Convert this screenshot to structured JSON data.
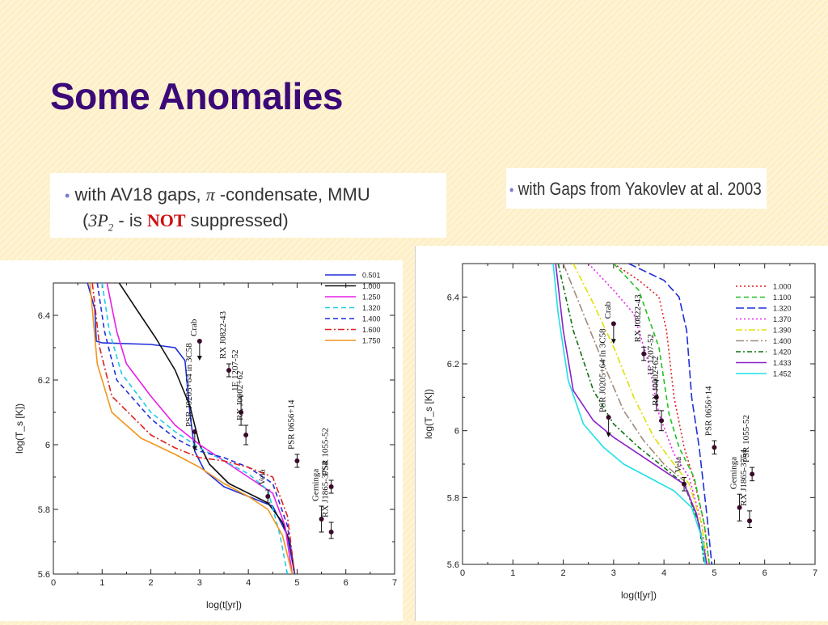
{
  "slide": {
    "title": "Some Anomalies",
    "caption_left": {
      "bullet": "•",
      "line1_a": "with AV18 gaps,",
      "line1_pi": "π",
      "line1_b": "-condensate, MMU",
      "line2_open": "(",
      "line2_math": "3P",
      "line2_sub": "2",
      "line2_mid": " - is ",
      "line2_not": "NOT",
      "line2_end": " suppressed)"
    },
    "caption_right": {
      "bullet": "•",
      "text": "with Gaps from Yakovlev at al. 2003"
    }
  },
  "chart_data": [
    {
      "type": "line",
      "xlabel": "log(t[yr])",
      "ylabel": "log(T_s [K])",
      "xlim": [
        0,
        7
      ],
      "ylim": [
        5.6,
        6.5
      ],
      "xticks": [
        "0",
        "1",
        "2",
        "3",
        "4",
        "5",
        "6",
        "7"
      ],
      "yticks": [
        "5.6",
        "5.8",
        "6",
        "6.2",
        "6.4"
      ],
      "legend_position": "top-right",
      "series": [
        {
          "name": "0.501",
          "color": "#1f2fd8",
          "dash": "",
          "points": [
            [
              0.7,
              6.5
            ],
            [
              0.85,
              6.42
            ],
            [
              0.88,
              6.32
            ],
            [
              1.0,
              6.315
            ],
            [
              2.0,
              6.31
            ],
            [
              2.5,
              6.3
            ],
            [
              2.7,
              6.26
            ],
            [
              2.8,
              6.1
            ],
            [
              2.9,
              5.98
            ],
            [
              3.1,
              5.92
            ],
            [
              3.5,
              5.87
            ],
            [
              4.0,
              5.84
            ],
            [
              4.5,
              5.81
            ],
            [
              4.8,
              5.72
            ],
            [
              4.95,
              5.6
            ]
          ]
        },
        {
          "name": "1.000",
          "color": "#111111",
          "dash": "",
          "points": [
            [
              1.35,
              6.5
            ],
            [
              1.7,
              6.42
            ],
            [
              2.1,
              6.33
            ],
            [
              2.5,
              6.23
            ],
            [
              2.8,
              6.12
            ],
            [
              3.0,
              6.0
            ],
            [
              3.2,
              5.94
            ],
            [
              3.6,
              5.88
            ],
            [
              4.0,
              5.85
            ],
            [
              4.4,
              5.82
            ],
            [
              4.7,
              5.76
            ],
            [
              4.85,
              5.7
            ],
            [
              4.95,
              5.6
            ]
          ]
        },
        {
          "name": "1.250",
          "color": "#e81ee8",
          "dash": "",
          "points": [
            [
              1.1,
              6.5
            ],
            [
              1.3,
              6.35
            ],
            [
              1.5,
              6.25
            ],
            [
              2.0,
              6.15
            ],
            [
              2.5,
              6.06
            ],
            [
              3.0,
              6.0
            ],
            [
              3.5,
              5.95
            ],
            [
              4.0,
              5.9
            ],
            [
              4.5,
              5.85
            ],
            [
              4.75,
              5.75
            ],
            [
              4.9,
              5.6
            ]
          ]
        },
        {
          "name": "1.320",
          "color": "#1ecbe8",
          "dash": "6,4",
          "points": [
            [
              1.0,
              6.5
            ],
            [
              1.15,
              6.35
            ],
            [
              1.4,
              6.22
            ],
            [
              2.0,
              6.1
            ],
            [
              2.5,
              6.04
            ],
            [
              3.0,
              5.99
            ],
            [
              3.5,
              5.95
            ],
            [
              4.0,
              5.91
            ],
            [
              4.4,
              5.86
            ],
            [
              4.65,
              5.72
            ],
            [
              4.8,
              5.6
            ]
          ]
        },
        {
          "name": "1.400",
          "color": "#1f2fd8",
          "dash": "6,4",
          "points": [
            [
              0.9,
              6.5
            ],
            [
              1.05,
              6.35
            ],
            [
              1.3,
              6.2
            ],
            [
              2.0,
              6.08
            ],
            [
              2.5,
              6.02
            ],
            [
              3.0,
              5.98
            ],
            [
              3.5,
              5.96
            ],
            [
              4.0,
              5.93
            ],
            [
              4.5,
              5.88
            ],
            [
              4.8,
              5.75
            ],
            [
              4.95,
              5.6
            ]
          ]
        },
        {
          "name": "1.600",
          "color": "#e02020",
          "dash": "8,3,2,3",
          "points": [
            [
              0.8,
              6.5
            ],
            [
              0.95,
              6.3
            ],
            [
              1.2,
              6.15
            ],
            [
              2.0,
              6.03
            ],
            [
              2.5,
              5.99
            ],
            [
              3.0,
              5.96
            ],
            [
              3.5,
              5.95
            ],
            [
              4.0,
              5.93
            ],
            [
              4.5,
              5.9
            ],
            [
              4.8,
              5.78
            ],
            [
              4.95,
              5.6
            ]
          ]
        },
        {
          "name": "1.750",
          "color": "#f0961e",
          "dash": "",
          "points": [
            [
              0.75,
              6.5
            ],
            [
              0.9,
              6.25
            ],
            [
              1.2,
              6.1
            ],
            [
              1.8,
              6.02
            ],
            [
              2.5,
              5.97
            ],
            [
              3.0,
              5.93
            ],
            [
              3.5,
              5.88
            ],
            [
              4.0,
              5.84
            ],
            [
              4.4,
              5.8
            ],
            [
              4.7,
              5.72
            ],
            [
              4.9,
              5.6
            ]
          ]
        }
      ],
      "observations": [
        {
          "name": "Crab",
          "x": 3.0,
          "y": 6.32,
          "upper_limit": true,
          "lo": 6.26,
          "hi": 6.32
        },
        {
          "name": "RX J0822-43",
          "x": 3.6,
          "y": 6.23,
          "lo": 6.21,
          "hi": 6.25
        },
        {
          "name": "1E 1207-52",
          "x": 3.85,
          "y": 6.1,
          "lo": 6.06,
          "hi": 6.15
        },
        {
          "name": "RX J0002+62",
          "x": 3.95,
          "y": 6.03,
          "lo": 6.0,
          "hi": 6.06
        },
        {
          "name": "PSR J0205+64 in 3C58",
          "x": 2.9,
          "y": 6.04,
          "upper_limit": true,
          "lo": 5.98,
          "hi": 6.04
        },
        {
          "name": "PSR 0656+14",
          "x": 5.0,
          "y": 5.95,
          "lo": 5.93,
          "hi": 5.97
        },
        {
          "name": "Vela",
          "x": 4.4,
          "y": 5.84,
          "lo": 5.82,
          "hi": 5.86
        },
        {
          "name": "PSR 1055-52",
          "x": 5.7,
          "y": 5.87,
          "lo": 5.85,
          "hi": 5.89
        },
        {
          "name": "Geminga",
          "x": 5.5,
          "y": 5.77,
          "lo": 5.73,
          "hi": 5.81
        },
        {
          "name": "RX J1865-3754",
          "x": 5.7,
          "y": 5.73,
          "lo": 5.71,
          "hi": 5.76
        }
      ]
    },
    {
      "type": "line",
      "xlabel": "log(t[yr])",
      "ylabel": "log(T_s [K])",
      "xlim": [
        0,
        7
      ],
      "ylim": [
        5.6,
        6.5
      ],
      "xticks": [
        "0",
        "1",
        "2",
        "3",
        "4",
        "5",
        "6",
        "7"
      ],
      "yticks": [
        "5.6",
        "5.8",
        "6",
        "6.2",
        "6.4"
      ],
      "legend_position": "top-right",
      "series": [
        {
          "name": "1.000",
          "color": "#e02020",
          "dash": "2,3",
          "points": [
            [
              3.0,
              6.5
            ],
            [
              3.5,
              6.45
            ],
            [
              3.9,
              6.4
            ],
            [
              4.05,
              6.3
            ],
            [
              4.2,
              6.1
            ],
            [
              4.4,
              5.95
            ],
            [
              4.6,
              5.85
            ],
            [
              4.8,
              5.72
            ],
            [
              4.9,
              5.6
            ]
          ]
        },
        {
          "name": "1.100",
          "color": "#20c020",
          "dash": "6,4",
          "points": [
            [
              3.0,
              6.5
            ],
            [
              3.5,
              6.42
            ],
            [
              3.9,
              6.25
            ],
            [
              4.1,
              6.05
            ],
            [
              4.3,
              5.95
            ],
            [
              4.6,
              5.86
            ],
            [
              4.8,
              5.72
            ],
            [
              4.9,
              5.6
            ]
          ]
        },
        {
          "name": "1.320",
          "color": "#1f2fd8",
          "dash": "10,4",
          "points": [
            [
              3.3,
              6.5
            ],
            [
              4.0,
              6.45
            ],
            [
              4.3,
              6.4
            ],
            [
              4.45,
              6.3
            ],
            [
              4.55,
              6.1
            ],
            [
              4.7,
              5.95
            ],
            [
              4.85,
              5.75
            ],
            [
              4.95,
              5.6
            ]
          ]
        },
        {
          "name": "1.370",
          "color": "#e81ee8",
          "dash": "2,3",
          "points": [
            [
              2.5,
              6.5
            ],
            [
              3.0,
              6.42
            ],
            [
              3.4,
              6.35
            ],
            [
              3.7,
              6.2
            ],
            [
              3.9,
              6.05
            ],
            [
              4.2,
              5.93
            ],
            [
              4.5,
              5.86
            ],
            [
              4.75,
              5.72
            ],
            [
              4.85,
              5.6
            ]
          ]
        },
        {
          "name": "1.390",
          "color": "#e0e000",
          "dash": "8,3,2,3",
          "points": [
            [
              2.2,
              6.5
            ],
            [
              2.6,
              6.38
            ],
            [
              3.0,
              6.25
            ],
            [
              3.4,
              6.1
            ],
            [
              3.8,
              5.98
            ],
            [
              4.2,
              5.9
            ],
            [
              4.5,
              5.84
            ],
            [
              4.75,
              5.72
            ],
            [
              4.85,
              5.6
            ]
          ]
        },
        {
          "name": "1.400",
          "color": "#a08c7c",
          "dash": "10,3,2,3",
          "points": [
            [
              2.0,
              6.5
            ],
            [
              2.4,
              6.35
            ],
            [
              2.8,
              6.2
            ],
            [
              3.2,
              6.06
            ],
            [
              3.6,
              5.97
            ],
            [
              4.0,
              5.9
            ],
            [
              4.4,
              5.85
            ],
            [
              4.7,
              5.72
            ],
            [
              4.85,
              5.6
            ]
          ]
        },
        {
          "name": "1.420",
          "color": "#107010",
          "dash": "6,3,2,3",
          "points": [
            [
              1.9,
              6.5
            ],
            [
              2.2,
              6.3
            ],
            [
              2.6,
              6.12
            ],
            [
              3.0,
              6.02
            ],
            [
              3.5,
              5.95
            ],
            [
              4.0,
              5.89
            ],
            [
              4.4,
              5.84
            ],
            [
              4.7,
              5.72
            ],
            [
              4.8,
              5.6
            ]
          ]
        },
        {
          "name": "1.433",
          "color": "#8a20c8",
          "dash": "",
          "points": [
            [
              1.85,
              6.5
            ],
            [
              2.0,
              6.3
            ],
            [
              2.2,
              6.12
            ],
            [
              2.6,
              6.03
            ],
            [
              3.0,
              5.98
            ],
            [
              3.5,
              5.93
            ],
            [
              4.0,
              5.88
            ],
            [
              4.4,
              5.84
            ],
            [
              4.65,
              5.75
            ],
            [
              4.85,
              5.6
            ]
          ]
        },
        {
          "name": "1.452",
          "color": "#1ee0e8",
          "dash": "",
          "points": [
            [
              1.8,
              6.5
            ],
            [
              1.9,
              6.35
            ],
            [
              2.1,
              6.15
            ],
            [
              2.4,
              6.02
            ],
            [
              2.8,
              5.95
            ],
            [
              3.2,
              5.9
            ],
            [
              3.7,
              5.86
            ],
            [
              4.2,
              5.82
            ],
            [
              4.55,
              5.77
            ],
            [
              4.75,
              5.68
            ],
            [
              4.82,
              5.6
            ]
          ]
        }
      ],
      "observations": [
        {
          "name": "Crab",
          "x": 3.0,
          "y": 6.32,
          "upper_limit": true,
          "lo": 6.26,
          "hi": 6.32
        },
        {
          "name": "RX J0822-43",
          "x": 3.6,
          "y": 6.23,
          "lo": 6.21,
          "hi": 6.25
        },
        {
          "name": "1E 1207-52",
          "x": 3.85,
          "y": 6.1,
          "lo": 6.06,
          "hi": 6.15
        },
        {
          "name": "RX J0002+62",
          "x": 3.95,
          "y": 6.03,
          "lo": 6.0,
          "hi": 6.06
        },
        {
          "name": "PSR J0205+64 in 3C58",
          "x": 2.9,
          "y": 6.04,
          "upper_limit": true,
          "lo": 5.98,
          "hi": 6.04
        },
        {
          "name": "PSR 0656+14",
          "x": 5.0,
          "y": 5.95,
          "lo": 5.93,
          "hi": 5.97
        },
        {
          "name": "Vela",
          "x": 4.4,
          "y": 5.84,
          "lo": 5.82,
          "hi": 5.86
        },
        {
          "name": "PSR 1055-52",
          "x": 5.75,
          "y": 5.87,
          "lo": 5.85,
          "hi": 5.89
        },
        {
          "name": "Geminga",
          "x": 5.5,
          "y": 5.77,
          "lo": 5.73,
          "hi": 5.81
        },
        {
          "name": "RX J1865-3754",
          "x": 5.7,
          "y": 5.73,
          "lo": 5.71,
          "hi": 5.76
        }
      ]
    }
  ]
}
